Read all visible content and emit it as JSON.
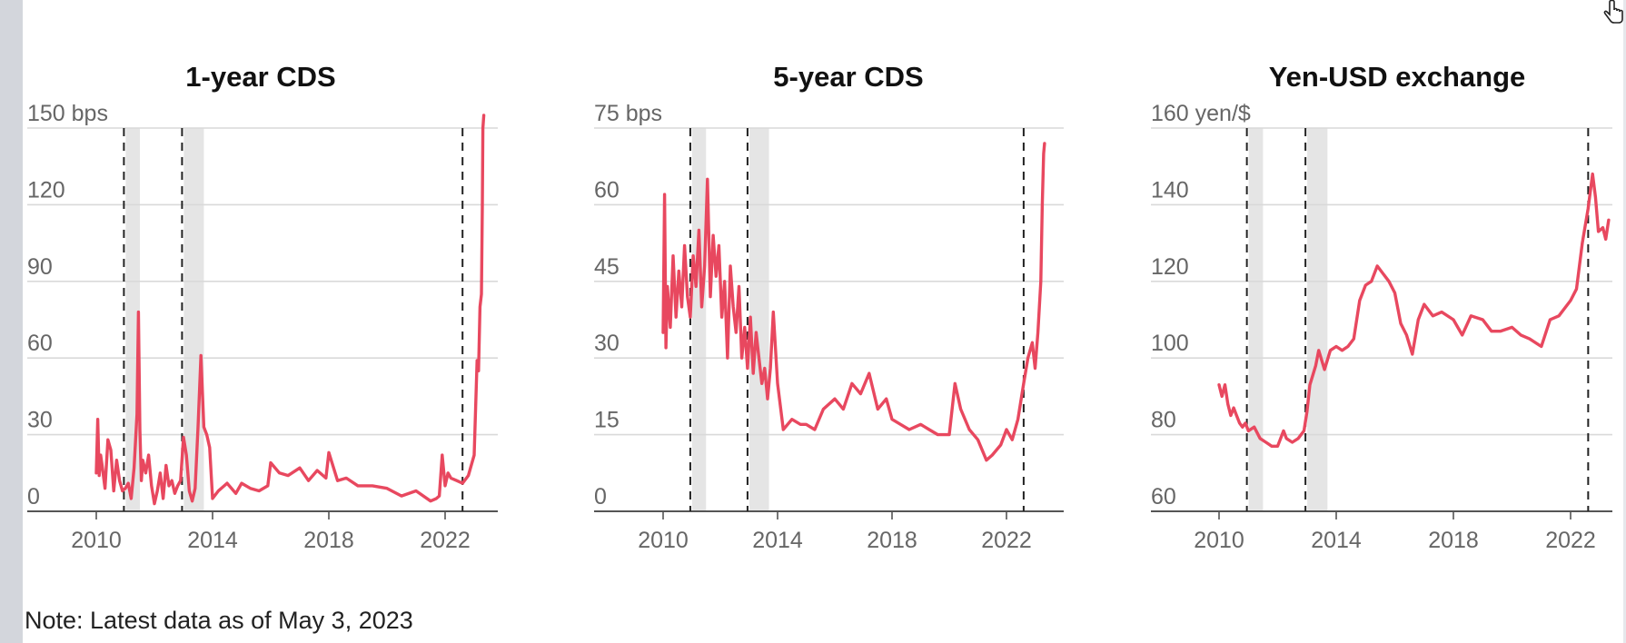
{
  "colors": {
    "line": "#e8485f",
    "grid": "#d9d9d9",
    "axis": "#555555",
    "shade": "#e5e5e5",
    "text": "#666666"
  },
  "note": "Note: Latest data as of May 3, 2023",
  "chart_data": [
    {
      "type": "line",
      "title": "1-year CDS",
      "y_unit": "bps",
      "ylim": [
        0,
        150
      ],
      "yticks": [
        0,
        30,
        60,
        90,
        120,
        150
      ],
      "ytick_labels": [
        "0",
        "30",
        "60",
        "90",
        "120",
        "150 bps"
      ],
      "xlim": [
        2009.4,
        2023.6
      ],
      "xticks": [
        2010,
        2014,
        2018,
        2022
      ],
      "xtick_labels": [
        "2010",
        "2014",
        "2018",
        "2022"
      ],
      "shaded_periods": [
        [
          2010.95,
          2011.5
        ],
        [
          2012.95,
          2013.7
        ]
      ],
      "vlines": [
        2010.95,
        2012.95,
        2022.6
      ],
      "grid": true,
      "series": [
        {
          "x": [
            2010.0,
            2010.05,
            2010.1,
            2010.15,
            2010.2,
            2010.3,
            2010.4,
            2010.5,
            2010.6,
            2010.7,
            2010.8,
            2010.9,
            2011.0,
            2011.1,
            2011.2,
            2011.3,
            2011.4,
            2011.45,
            2011.5,
            2011.55,
            2011.6,
            2011.7,
            2011.8,
            2011.9,
            2012.0,
            2012.1,
            2012.2,
            2012.3,
            2012.4,
            2012.5,
            2012.6,
            2012.7,
            2012.8,
            2012.9,
            2013.0,
            2013.1,
            2013.2,
            2013.3,
            2013.4,
            2013.5,
            2013.6,
            2013.7,
            2013.8,
            2013.9,
            2014.0,
            2014.2,
            2014.5,
            2014.8,
            2015.0,
            2015.3,
            2015.6,
            2015.9,
            2016.0,
            2016.3,
            2016.6,
            2017.0,
            2017.3,
            2017.6,
            2017.9,
            2018.0,
            2018.3,
            2018.6,
            2019.0,
            2019.5,
            2020.0,
            2020.5,
            2021.0,
            2021.5,
            2021.7,
            2021.8,
            2021.9,
            2022.0,
            2022.1,
            2022.2,
            2022.4,
            2022.6,
            2022.8,
            2023.0,
            2023.1,
            2023.15,
            2023.2,
            2023.25,
            2023.28,
            2023.3,
            2023.33
          ],
          "y": [
            15,
            36,
            14,
            22,
            18,
            9,
            28,
            24,
            8,
            20,
            12,
            8,
            9,
            11,
            5,
            17,
            38,
            78,
            32,
            12,
            20,
            15,
            22,
            10,
            3,
            8,
            15,
            5,
            18,
            10,
            12,
            7,
            10,
            12,
            29,
            22,
            8,
            4,
            9,
            33,
            61,
            33,
            30,
            25,
            5,
            8,
            11,
            7,
            11,
            9,
            8,
            10,
            19,
            15,
            14,
            17,
            12,
            16,
            13,
            23,
            12,
            13,
            10,
            10,
            9,
            6,
            8,
            4,
            5,
            6,
            22,
            10,
            15,
            13,
            12,
            11,
            14,
            22,
            59,
            55,
            80,
            85,
            120,
            150,
            155
          ]
        }
      ]
    },
    {
      "type": "line",
      "title": "5-year CDS",
      "y_unit": "bps",
      "ylim": [
        0,
        75
      ],
      "yticks": [
        0,
        15,
        30,
        45,
        60,
        75
      ],
      "ytick_labels": [
        "0",
        "15",
        "30",
        "45",
        "60",
        "75 bps"
      ],
      "xlim": [
        2009.4,
        2023.6
      ],
      "xticks": [
        2010,
        2014,
        2018,
        2022
      ],
      "xtick_labels": [
        "2010",
        "2014",
        "2018",
        "2022"
      ],
      "shaded_periods": [
        [
          2010.95,
          2011.5
        ],
        [
          2012.95,
          2013.7
        ]
      ],
      "vlines": [
        2010.95,
        2012.95,
        2022.6
      ],
      "grid": true,
      "series": [
        {
          "x": [
            2010.0,
            2010.05,
            2010.1,
            2010.15,
            2010.25,
            2010.35,
            2010.45,
            2010.55,
            2010.65,
            2010.75,
            2010.85,
            2010.95,
            2011.05,
            2011.15,
            2011.25,
            2011.35,
            2011.45,
            2011.55,
            2011.65,
            2011.75,
            2011.85,
            2011.95,
            2012.05,
            2012.15,
            2012.25,
            2012.35,
            2012.45,
            2012.55,
            2012.65,
            2012.75,
            2012.85,
            2012.95,
            2013.05,
            2013.15,
            2013.25,
            2013.35,
            2013.45,
            2013.55,
            2013.65,
            2013.75,
            2013.85,
            2014.0,
            2014.2,
            2014.5,
            2014.8,
            2015.0,
            2015.3,
            2015.6,
            2016.0,
            2016.3,
            2016.6,
            2016.9,
            2017.2,
            2017.5,
            2017.8,
            2018.0,
            2018.3,
            2018.6,
            2019.0,
            2019.3,
            2019.6,
            2020.0,
            2020.2,
            2020.4,
            2020.7,
            2021.0,
            2021.3,
            2021.5,
            2021.8,
            2022.0,
            2022.2,
            2022.4,
            2022.6,
            2022.75,
            2022.9,
            2023.0,
            2023.1,
            2023.2,
            2023.25,
            2023.3,
            2023.33
          ],
          "y": [
            35,
            62,
            32,
            44,
            36,
            50,
            38,
            47,
            40,
            52,
            42,
            38,
            50,
            44,
            55,
            40,
            48,
            65,
            42,
            54,
            46,
            52,
            38,
            45,
            30,
            48,
            40,
            35,
            44,
            30,
            36,
            28,
            38,
            27,
            35,
            30,
            25,
            28,
            22,
            28,
            39,
            25,
            16,
            18,
            17,
            17,
            16,
            20,
            22,
            20,
            25,
            23,
            27,
            20,
            22,
            18,
            17,
            16,
            17,
            16,
            15,
            15,
            25,
            20,
            16,
            14,
            10,
            11,
            13,
            16,
            14,
            18,
            25,
            30,
            33,
            28,
            35,
            45,
            60,
            70,
            72
          ]
        }
      ]
    },
    {
      "type": "line",
      "title": "Yen-USD exchange",
      "y_unit": "yen/$",
      "ylim": [
        60,
        160
      ],
      "yticks": [
        60,
        80,
        100,
        120,
        140,
        160
      ],
      "ytick_labels": [
        "60",
        "80",
        "100",
        "120",
        "140",
        "160 yen/$"
      ],
      "xlim": [
        2009.4,
        2023.6
      ],
      "xticks": [
        2010,
        2014,
        2018,
        2022
      ],
      "xtick_labels": [
        "2010",
        "2014",
        "2018",
        "2022"
      ],
      "shaded_periods": [
        [
          2010.95,
          2011.5
        ],
        [
          2012.95,
          2013.7
        ]
      ],
      "vlines": [
        2010.95,
        2012.95,
        2022.6
      ],
      "grid": true,
      "series": [
        {
          "x": [
            2010.0,
            2010.1,
            2010.2,
            2010.3,
            2010.4,
            2010.5,
            2010.6,
            2010.7,
            2010.8,
            2010.9,
            2011.0,
            2011.2,
            2011.4,
            2011.6,
            2011.8,
            2012.0,
            2012.2,
            2012.3,
            2012.5,
            2012.7,
            2012.9,
            2013.0,
            2013.1,
            2013.3,
            2013.4,
            2013.6,
            2013.8,
            2014.0,
            2014.2,
            2014.4,
            2014.6,
            2014.8,
            2015.0,
            2015.2,
            2015.4,
            2015.6,
            2015.8,
            2016.0,
            2016.2,
            2016.4,
            2016.6,
            2016.8,
            2017.0,
            2017.3,
            2017.6,
            2018.0,
            2018.3,
            2018.6,
            2019.0,
            2019.3,
            2019.6,
            2020.0,
            2020.3,
            2020.6,
            2021.0,
            2021.3,
            2021.6,
            2022.0,
            2022.2,
            2022.4,
            2022.6,
            2022.75,
            2022.85,
            2022.95,
            2023.1,
            2023.2,
            2023.3
          ],
          "y": [
            93,
            90,
            93,
            88,
            85,
            87,
            85,
            83,
            82,
            83,
            81,
            82,
            79,
            78,
            77,
            77,
            81,
            79,
            78,
            79,
            81,
            86,
            93,
            98,
            102,
            97,
            102,
            103,
            102,
            103,
            105,
            115,
            119,
            120,
            124,
            122,
            120,
            117,
            109,
            106,
            101,
            110,
            114,
            111,
            112,
            110,
            106,
            111,
            110,
            107,
            107,
            108,
            106,
            105,
            103,
            110,
            111,
            115,
            118,
            130,
            139,
            148,
            142,
            133,
            134,
            131,
            136
          ]
        }
      ]
    }
  ]
}
